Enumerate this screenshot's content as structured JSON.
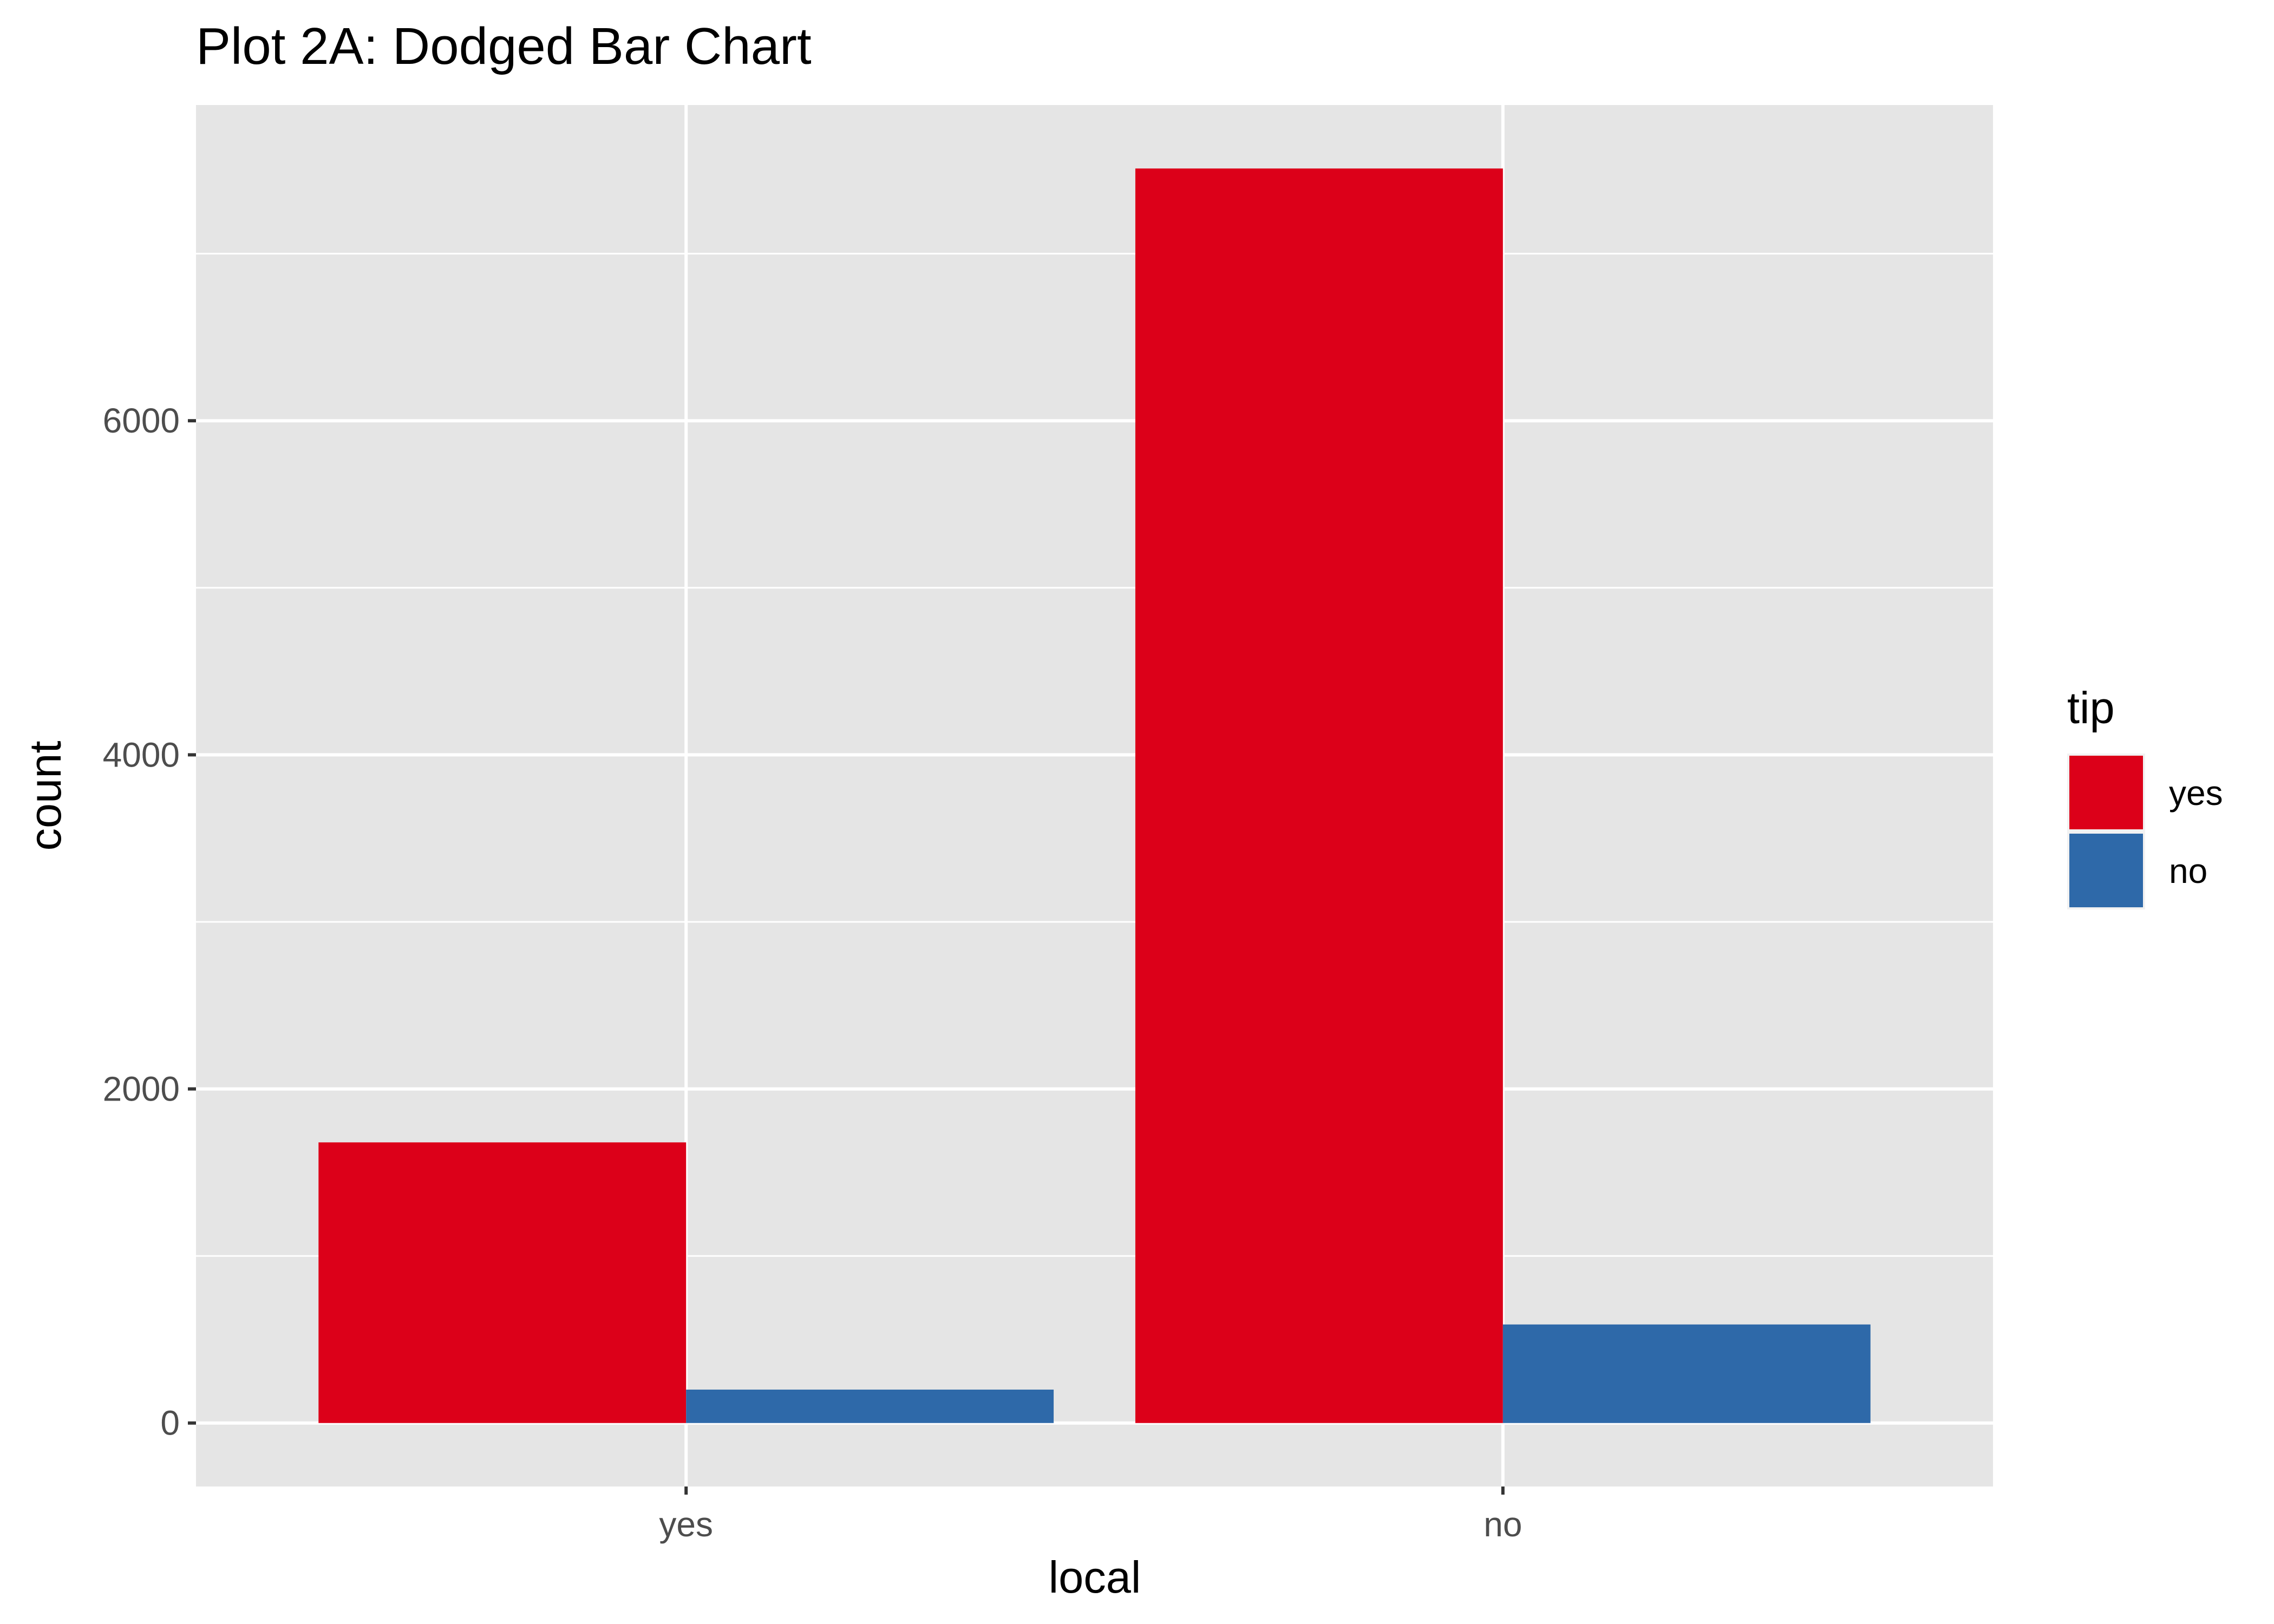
{
  "chart_data": {
    "type": "bar",
    "title": "Plot 2A: Dodged Bar Chart",
    "xlabel": "local",
    "ylabel": "count",
    "categories": [
      "yes",
      "no"
    ],
    "series": [
      {
        "name": "yes",
        "color": "#DC0019",
        "values": [
          1680,
          7510
        ]
      },
      {
        "name": "no",
        "color": "#2E69A9",
        "values": [
          200,
          590
        ]
      }
    ],
    "ylim": [
      -380,
      7890
    ],
    "y_ticks": [
      0,
      2000,
      4000,
      6000
    ],
    "y_tick_labels": [
      "0",
      "2000",
      "4000",
      "6000"
    ],
    "grid": true,
    "legend": {
      "title": "tip",
      "position": "right"
    },
    "panel_color": "#E5E5E5",
    "grid_color": "#FFFFFF"
  }
}
